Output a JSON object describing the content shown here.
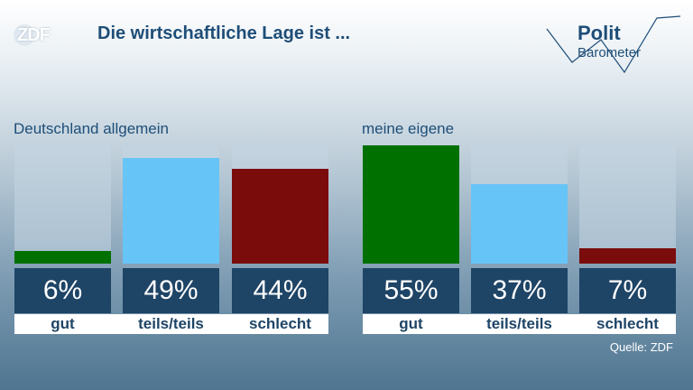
{
  "header": {
    "logo": "ZDF",
    "title": "Die wirtschaftliche Lage ist ...",
    "brand_line1": "Polit",
    "brand_line2": "Barometer"
  },
  "colors": {
    "gut": "#007000",
    "teils": "#66c4f7",
    "schlecht": "#7a0c0c"
  },
  "chart_data": [
    {
      "type": "bar",
      "title": "Deutschland allgemein",
      "categories": [
        "gut",
        "teils/teils",
        "schlecht"
      ],
      "values": [
        6,
        49,
        44
      ],
      "value_labels": [
        "6%",
        "49%",
        "44%"
      ],
      "ylim": [
        0,
        55
      ]
    },
    {
      "type": "bar",
      "title": "meine eigene",
      "categories": [
        "gut",
        "teils/teils",
        "schlecht"
      ],
      "values": [
        55,
        37,
        7
      ],
      "value_labels": [
        "55%",
        "37%",
        "7%"
      ],
      "ylim": [
        0,
        55
      ]
    }
  ],
  "footer": {
    "source": "Quelle: ZDF"
  }
}
